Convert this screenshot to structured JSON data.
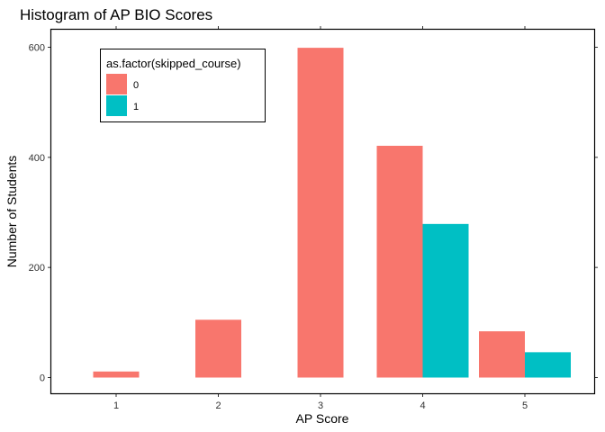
{
  "chart_data": {
    "type": "bar",
    "title": "Histogram of AP BIO Scores",
    "xlabel": "AP Score",
    "ylabel": "Number of Students",
    "categories": [
      "1",
      "2",
      "3",
      "4",
      "5"
    ],
    "ylim": [
      -15,
      635
    ],
    "yticks": [
      "0",
      "200",
      "400",
      "600"
    ],
    "grid": false,
    "legend": {
      "title": "as.factor(skipped_course)",
      "position": "top-left"
    },
    "series": [
      {
        "name": "0",
        "color": "#F8766D",
        "values": [
          11,
          105,
          599,
          421,
          84
        ]
      },
      {
        "name": "1",
        "color": "#00BFC4",
        "values": [
          0,
          0,
          0,
          279,
          46
        ]
      }
    ]
  }
}
